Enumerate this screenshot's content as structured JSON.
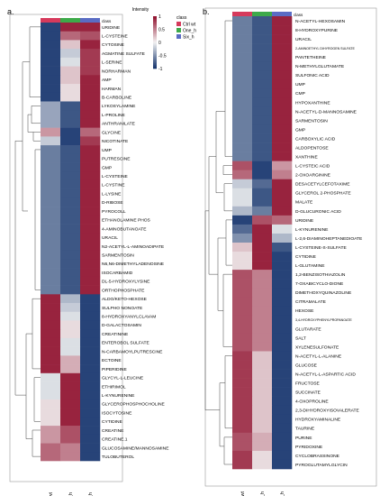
{
  "colors": {
    "ctrl": "#d63a5c",
    "one": "#3daa4a",
    "six": "#5a6cc4",
    "pos": "#8e0c2a",
    "neu": "#f2f2f2",
    "neg": "#10306a",
    "tree": "#444444",
    "frame": "#999999"
  },
  "chart_data": [
    {
      "type": "heatmap",
      "panel": "a.",
      "class_label": "class",
      "legend": {
        "title": "Intensity",
        "ticks": [
          "1",
          "0.5",
          "0",
          "-0.5",
          "-1"
        ],
        "range": [
          -1,
          1
        ],
        "class_title": "class",
        "class_items": [
          "Ctrl wt",
          "One_h",
          "Six_h"
        ]
      },
      "columns": [
        "Ctrl wt",
        "One_h",
        "Six_h"
      ],
      "rows": [
        {
          "label": "URIDINE",
          "values": [
            -0.9,
            0.9,
            0.9
          ]
        },
        {
          "label": "L-CYSTEINE",
          "values": [
            -0.9,
            0.6,
            0.7
          ]
        },
        {
          "label": "CYTOSINE",
          "values": [
            -0.9,
            0.2,
            0.9
          ]
        },
        {
          "label": "AGMATINE SULFATE",
          "values": [
            -0.9,
            -0.2,
            0.8
          ]
        },
        {
          "label": "L-SERINE",
          "values": [
            -0.9,
            -0.1,
            0.8
          ]
        },
        {
          "label": "NORHARMAN",
          "values": [
            -0.9,
            0.2,
            0.8
          ]
        },
        {
          "label": "AMP",
          "values": [
            -0.9,
            0.2,
            0.9
          ]
        },
        {
          "label": "HARMAN",
          "values": [
            -0.9,
            0.1,
            0.9
          ]
        },
        {
          "label": "B-CARBOLINE",
          "values": [
            -0.9,
            0.1,
            0.9
          ]
        },
        {
          "label": "LYKOSYLAMINE",
          "values": [
            -0.4,
            -0.8,
            0.9
          ]
        },
        {
          "label": "L-PROLINE",
          "values": [
            -0.4,
            -0.8,
            0.9
          ]
        },
        {
          "label": "ANTHRANILATE",
          "values": [
            -0.4,
            -0.8,
            0.9
          ]
        },
        {
          "label": "GLYCINE",
          "values": [
            0.4,
            -0.9,
            0.6
          ]
        },
        {
          "label": "NICOTINATE",
          "values": [
            -0.2,
            -0.9,
            0.8
          ]
        },
        {
          "label": "UMP",
          "values": [
            -0.6,
            -0.8,
            0.9
          ]
        },
        {
          "label": "PUTRESCINE",
          "values": [
            -0.6,
            -0.8,
            0.9
          ]
        },
        {
          "label": "GMP",
          "values": [
            -0.6,
            -0.8,
            0.9
          ]
        },
        {
          "label": "L-CYSTEINE",
          "values": [
            -0.6,
            -0.8,
            0.9
          ]
        },
        {
          "label": "L-CYSTINE",
          "values": [
            -0.6,
            -0.8,
            0.9
          ]
        },
        {
          "label": "L-LYSINE",
          "values": [
            -0.6,
            -0.8,
            0.9
          ]
        },
        {
          "label": "D-RIBOSE",
          "values": [
            -0.6,
            -0.8,
            0.9
          ]
        },
        {
          "label": "PYROCOLL",
          "values": [
            -0.6,
            -0.8,
            0.9
          ]
        },
        {
          "label": "ETHANOLAMINE PHOS",
          "values": [
            -0.6,
            -0.8,
            0.9
          ]
        },
        {
          "label": "4-AMINOBUTANOATE",
          "values": [
            -0.6,
            -0.8,
            0.9
          ]
        },
        {
          "label": "URACIL",
          "values": [
            -0.6,
            -0.8,
            0.9
          ]
        },
        {
          "label": "N2-ACETYL-L-AMINOADIPATE",
          "values": [
            -0.6,
            -0.8,
            0.9
          ]
        },
        {
          "label": "SARMENTOSIN",
          "values": [
            -0.6,
            -0.8,
            0.9
          ]
        },
        {
          "label": "N6,N6-DIMETHYLADENOSINE",
          "values": [
            -0.6,
            -0.8,
            0.9
          ]
        },
        {
          "label": "ISOCARBAMID",
          "values": [
            -0.6,
            -0.8,
            0.9
          ]
        },
        {
          "label": "DL-5-HYDROXYLYSINE",
          "values": [
            -0.6,
            -0.8,
            0.9
          ]
        },
        {
          "label": "ORTHOPHOSPHATE",
          "values": [
            -0.6,
            -0.8,
            0.9
          ]
        },
        {
          "label": "ALDO/KETO-HEXOSE",
          "values": [
            0.9,
            -0.3,
            -0.9
          ]
        },
        {
          "label": "SULPHO NONOATE",
          "values": [
            0.9,
            -0.2,
            -0.9
          ]
        },
        {
          "label": "8-HYDROXYANYLCLAVAM",
          "values": [
            0.9,
            -0.1,
            -0.9
          ]
        },
        {
          "label": "D-GALACTOSAMIN",
          "values": [
            0.9,
            0.1,
            -0.9
          ]
        },
        {
          "label": "CREATININE",
          "values": [
            0.9,
            0.1,
            -0.9
          ]
        },
        {
          "label": "ENTEROBOL SULFATE",
          "values": [
            0.9,
            -0.1,
            -0.9
          ]
        },
        {
          "label": "N-CARBAMOYLPUTRESCINE",
          "values": [
            0.9,
            -0.1,
            -0.9
          ]
        },
        {
          "label": "ECTOINE",
          "values": [
            0.9,
            0.3,
            -0.9
          ]
        },
        {
          "label": "PIPERIDINE",
          "values": [
            0.9,
            0.3,
            -0.9
          ]
        },
        {
          "label": "GLYCYL-L-LEUCINE",
          "values": [
            -0.1,
            0.9,
            -0.9
          ]
        },
        {
          "label": "ETHIRIMOL",
          "values": [
            -0.1,
            0.9,
            -0.9
          ]
        },
        {
          "label": "L-KYNURENINE",
          "values": [
            -0.1,
            0.9,
            -0.9
          ]
        },
        {
          "label": "GLYCEROPHOSPHOCHOLINE",
          "values": [
            0.1,
            0.9,
            -0.9
          ]
        },
        {
          "label": "ISOCYTOSINE",
          "values": [
            0.1,
            0.9,
            -0.9
          ]
        },
        {
          "label": "CYTIDINE",
          "values": [
            0.1,
            0.9,
            -0.9
          ]
        },
        {
          "label": "CREATINE",
          "values": [
            0.4,
            0.7,
            -0.9
          ]
        },
        {
          "label": "CREATINE.1",
          "values": [
            0.4,
            0.7,
            -0.9
          ]
        },
        {
          "label": "GLUCOSAMINE/MANNOSAMINE",
          "values": [
            0.6,
            0.5,
            -0.9
          ]
        },
        {
          "label": "TULOBUTEROL",
          "values": [
            0.6,
            0.5,
            -0.9
          ]
        }
      ]
    },
    {
      "type": "heatmap",
      "panel": "b.",
      "class_label": "class",
      "columns": [
        "Ctrl wt",
        "One_h",
        "Six_h"
      ],
      "rows": [
        {
          "label": "N-ACETYL-HEXOSAMIN",
          "values": [
            -0.6,
            -0.8,
            0.9
          ]
        },
        {
          "label": "8-HYDROXYPURINE",
          "values": [
            -0.6,
            -0.8,
            0.9
          ]
        },
        {
          "label": "URACIL",
          "values": [
            -0.6,
            -0.8,
            0.9
          ]
        },
        {
          "label": "2-AMINOETHYL DIHYROGEN SULFATE",
          "values": [
            -0.6,
            -0.8,
            0.9
          ]
        },
        {
          "label": "PANTETHEINE",
          "values": [
            -0.6,
            -0.8,
            0.9
          ]
        },
        {
          "label": "N-METHYLGLUTAMATE",
          "values": [
            -0.6,
            -0.8,
            0.9
          ]
        },
        {
          "label": "SULFONIC ACID",
          "values": [
            -0.6,
            -0.8,
            0.9
          ]
        },
        {
          "label": "UMP",
          "values": [
            -0.6,
            -0.8,
            0.9
          ]
        },
        {
          "label": "CMP",
          "values": [
            -0.6,
            -0.8,
            0.9
          ]
        },
        {
          "label": "HYPOXANTHINE",
          "values": [
            -0.6,
            -0.8,
            0.9
          ]
        },
        {
          "label": "N-ACETYL-D-MANNOSAMINE",
          "values": [
            -0.6,
            -0.8,
            0.9
          ]
        },
        {
          "label": "SARMENTOSIN",
          "values": [
            -0.6,
            -0.8,
            0.9
          ]
        },
        {
          "label": "GMP",
          "values": [
            -0.6,
            -0.8,
            0.9
          ]
        },
        {
          "label": "CARBOXYLIC ACID",
          "values": [
            -0.6,
            -0.8,
            0.9
          ]
        },
        {
          "label": "ALDOPENTOSE",
          "values": [
            -0.6,
            -0.8,
            0.9
          ]
        },
        {
          "label": "XANTHINE",
          "values": [
            -0.6,
            -0.8,
            0.9
          ]
        },
        {
          "label": "L-CYSTEIC ACID",
          "values": [
            0.7,
            -0.9,
            0.4
          ]
        },
        {
          "label": "2-OXOARGININE",
          "values": [
            0.6,
            -0.9,
            0.5
          ]
        },
        {
          "label": "DESACETYLCEFOTAXIME",
          "values": [
            -0.2,
            -0.7,
            0.9
          ]
        },
        {
          "label": "GLYCEROL 2-PHOSPHATE",
          "values": [
            -0.1,
            -0.8,
            0.9
          ]
        },
        {
          "label": "MALATE",
          "values": [
            -0.1,
            -0.8,
            0.9
          ]
        },
        {
          "label": "D-GLUCURONIC ACID",
          "values": [
            -0.3,
            -0.6,
            0.9
          ]
        },
        {
          "label": "URIDINE",
          "values": [
            -0.9,
            0.7,
            0.6
          ]
        },
        {
          "label": "L-KYNURENINE",
          "values": [
            -0.7,
            0.9,
            -0.1
          ]
        },
        {
          "label": "L-2,6-DIAMINOHEPTANEDIOATE",
          "values": [
            -0.5,
            0.9,
            -0.3
          ]
        },
        {
          "label": "L-CYSTEINE-S-SULFATE",
          "values": [
            0.2,
            0.9,
            -0.8
          ]
        },
        {
          "label": "CYTIDINE",
          "values": [
            0.1,
            0.9,
            -0.9
          ]
        },
        {
          "label": "L-GLUTAMINE",
          "values": [
            0.1,
            0.9,
            -0.9
          ]
        },
        {
          "label": "1,2-BENZISOTHIAZOLIN",
          "values": [
            0.7,
            0.5,
            -0.9
          ]
        },
        {
          "label": "7-OXABICYCLO-DIONE",
          "values": [
            0.7,
            0.5,
            -0.9
          ]
        },
        {
          "label": "DIMETHOXYQUINAZOLINE",
          "values": [
            0.7,
            0.5,
            -0.9
          ]
        },
        {
          "label": "CITRAMALATE",
          "values": [
            0.7,
            0.5,
            -0.9
          ]
        },
        {
          "label": "HEXOSE",
          "values": [
            0.7,
            0.5,
            -0.9
          ]
        },
        {
          "label": "3,4-HYDROXYPHENYLPROPANOATE",
          "values": [
            0.7,
            0.5,
            -0.9
          ]
        },
        {
          "label": "GLUTARATE",
          "values": [
            0.7,
            0.5,
            -0.9
          ]
        },
        {
          "label": "SALT",
          "values": [
            0.7,
            0.5,
            -0.9
          ]
        },
        {
          "label": "XYLENESULFONATE",
          "values": [
            0.7,
            0.5,
            -0.9
          ]
        },
        {
          "label": "N-ACETYL-L-ALANINE",
          "values": [
            0.8,
            0.2,
            -0.9
          ]
        },
        {
          "label": "GLUCOSE",
          "values": [
            0.8,
            0.2,
            -0.9
          ]
        },
        {
          "label": "N-ACETYL-L-ASPARTIC ACID",
          "values": [
            0.8,
            0.2,
            -0.9
          ]
        },
        {
          "label": "FRUCTOSE",
          "values": [
            0.8,
            0.2,
            -0.9
          ]
        },
        {
          "label": "SUCCINATE",
          "values": [
            0.8,
            0.2,
            -0.9
          ]
        },
        {
          "label": "4-OXOPROLINE",
          "values": [
            0.8,
            0.2,
            -0.9
          ]
        },
        {
          "label": "2,3-DIHYDROXYISOVALERATE",
          "values": [
            0.8,
            0.2,
            -0.9
          ]
        },
        {
          "label": "HYDROXYAMINALINE",
          "values": [
            0.8,
            0.2,
            -0.9
          ]
        },
        {
          "label": "TAURINE",
          "values": [
            0.8,
            0.2,
            -0.9
          ]
        },
        {
          "label": "PURINE",
          "values": [
            0.7,
            0.3,
            -0.9
          ]
        },
        {
          "label": "PYRIDOXINE",
          "values": [
            0.7,
            0.3,
            -0.9
          ]
        },
        {
          "label": "CYCLOBRASSINONE",
          "values": [
            0.8,
            0.1,
            -0.9
          ]
        },
        {
          "label": "PYROGLUTAMYLGLYCIN",
          "values": [
            0.8,
            0.1,
            -0.9
          ]
        }
      ]
    }
  ]
}
